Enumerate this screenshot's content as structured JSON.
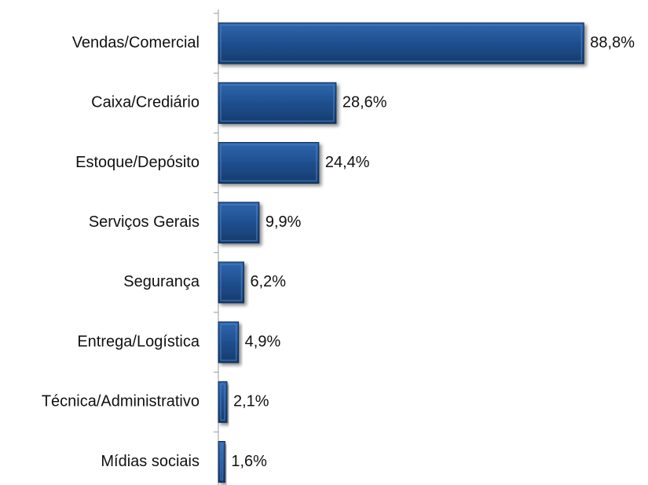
{
  "chart_data": {
    "type": "bar",
    "orientation": "horizontal",
    "categories": [
      "Vendas/Comercial",
      "Caixa/Crediário",
      "Estoque/Depósito",
      "Serviços Gerais",
      "Segurança",
      "Entrega/Logística",
      "Técnica/Administrativo",
      "Mídias sociais"
    ],
    "values": [
      88.8,
      28.6,
      24.4,
      9.9,
      6.2,
      4.9,
      2.1,
      1.6
    ],
    "value_labels": [
      "88,8%",
      "28,6%",
      "24,4%",
      "9,9%",
      "6,2%",
      "4,9%",
      "2,1%",
      "1,6%"
    ],
    "color": "#1f4f8f"
  }
}
